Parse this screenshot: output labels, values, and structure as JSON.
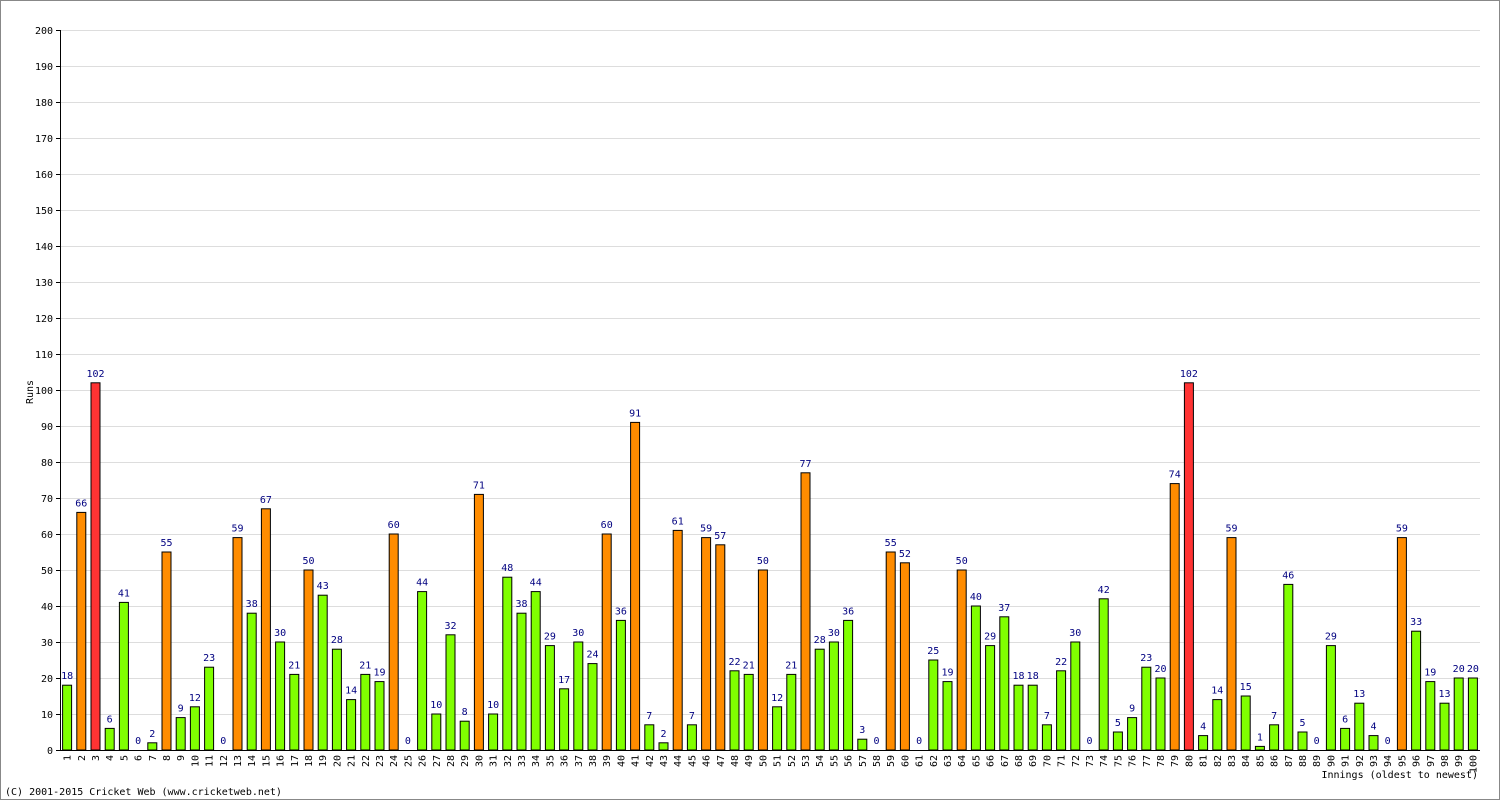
{
  "chart_data": {
    "type": "bar",
    "y_label": "Runs",
    "x_label": "Innings (oldest to newest)",
    "footer": "(C) 2001-2015 Cricket Web (www.cricketweb.net)",
    "categories": [
      "1",
      "2",
      "3",
      "4",
      "5",
      "6",
      "7",
      "8",
      "9",
      "10",
      "11",
      "12",
      "13",
      "14",
      "15",
      "16",
      "17",
      "18",
      "19",
      "20",
      "21",
      "22",
      "23",
      "24",
      "25",
      "26",
      "27",
      "28",
      "29",
      "30",
      "31",
      "32",
      "33",
      "34",
      "35",
      "36",
      "37",
      "38",
      "39",
      "40",
      "41",
      "42",
      "43",
      "44",
      "45",
      "46",
      "47",
      "48",
      "49",
      "50",
      "51",
      "52",
      "53",
      "54",
      "55",
      "56",
      "57",
      "58",
      "59",
      "60",
      "61",
      "62",
      "63",
      "64",
      "65",
      "66",
      "67",
      "68",
      "69",
      "70",
      "71",
      "72",
      "73",
      "74",
      "75",
      "76",
      "77",
      "78",
      "79",
      "80",
      "81",
      "82",
      "83",
      "84",
      "85",
      "86",
      "87",
      "88",
      "89",
      "90",
      "91",
      "92",
      "93",
      "94",
      "95",
      "96",
      "97",
      "98",
      "99",
      "100"
    ],
    "values": [
      18,
      66,
      102,
      6,
      41,
      0,
      2,
      55,
      9,
      12,
      23,
      0,
      59,
      38,
      67,
      30,
      21,
      50,
      43,
      28,
      14,
      21,
      19,
      60,
      0,
      44,
      10,
      32,
      8,
      71,
      10,
      48,
      38,
      44,
      29,
      17,
      30,
      24,
      60,
      36,
      91,
      7,
      2,
      61,
      7,
      59,
      57,
      22,
      21,
      50,
      12,
      21,
      77,
      28,
      30,
      36,
      3,
      0,
      55,
      52,
      0,
      25,
      19,
      50,
      40,
      29,
      37,
      18,
      18,
      7,
      22,
      30,
      0,
      42,
      5,
      9,
      23,
      20,
      74,
      102,
      4,
      14,
      59,
      15,
      1,
      7,
      46,
      5,
      0,
      29,
      6,
      13,
      4,
      0,
      59,
      33,
      19,
      13,
      20,
      20
    ],
    "colors": [
      "#80ff00",
      "#ff8c00",
      "#ff3333",
      "#80ff00",
      "#80ff00",
      "#80ff00",
      "#80ff00",
      "#ff8c00",
      "#80ff00",
      "#80ff00",
      "#80ff00",
      "#80ff00",
      "#ff8c00",
      "#80ff00",
      "#ff8c00",
      "#80ff00",
      "#80ff00",
      "#ff8c00",
      "#80ff00",
      "#80ff00",
      "#80ff00",
      "#80ff00",
      "#80ff00",
      "#ff8c00",
      "#80ff00",
      "#80ff00",
      "#80ff00",
      "#80ff00",
      "#80ff00",
      "#ff8c00",
      "#80ff00",
      "#80ff00",
      "#80ff00",
      "#80ff00",
      "#80ff00",
      "#80ff00",
      "#80ff00",
      "#80ff00",
      "#ff8c00",
      "#80ff00",
      "#ff8c00",
      "#80ff00",
      "#80ff00",
      "#ff8c00",
      "#80ff00",
      "#ff8c00",
      "#ff8c00",
      "#80ff00",
      "#80ff00",
      "#ff8c00",
      "#80ff00",
      "#80ff00",
      "#ff8c00",
      "#80ff00",
      "#80ff00",
      "#80ff00",
      "#80ff00",
      "#80ff00",
      "#ff8c00",
      "#ff8c00",
      "#80ff00",
      "#80ff00",
      "#80ff00",
      "#ff8c00",
      "#80ff00",
      "#80ff00",
      "#80ff00",
      "#80ff00",
      "#80ff00",
      "#80ff00",
      "#80ff00",
      "#80ff00",
      "#80ff00",
      "#80ff00",
      "#80ff00",
      "#80ff00",
      "#80ff00",
      "#80ff00",
      "#ff8c00",
      "#ff3333",
      "#80ff00",
      "#80ff00",
      "#ff8c00",
      "#80ff00",
      "#80ff00",
      "#80ff00",
      "#80ff00",
      "#80ff00",
      "#80ff00",
      "#80ff00",
      "#80ff00",
      "#80ff00",
      "#80ff00",
      "#80ff00",
      "#ff8c00",
      "#80ff00",
      "#80ff00",
      "#80ff00",
      "#80ff00",
      "#80ff00"
    ],
    "ylim": [
      0,
      200
    ],
    "yticks": [
      0,
      10,
      20,
      30,
      40,
      50,
      60,
      70,
      80,
      90,
      100,
      110,
      120,
      130,
      140,
      150,
      160,
      170,
      180,
      190,
      200
    ],
    "grid": true
  }
}
